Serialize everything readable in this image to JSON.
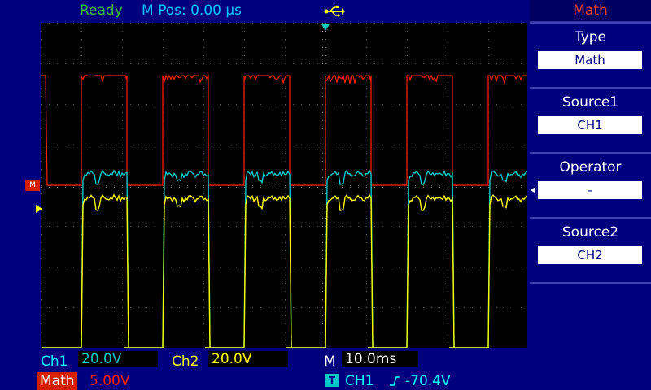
{
  "status": {
    "run_state": "Ready",
    "m_pos": "M Pos: 0.00 µs",
    "usb_icon": "usb-icon"
  },
  "channels": {
    "ch1": {
      "label": "Ch1",
      "scale": "20.0V",
      "color": "#00c8c8"
    },
    "ch2": {
      "label": "Ch2",
      "scale": "20.0V",
      "color": "#ffff00"
    },
    "math": {
      "label": "Math",
      "scale": "5.00V",
      "color": "#ff2000",
      "marker": "M"
    }
  },
  "timebase": {
    "label": "M",
    "value": "10.0ms"
  },
  "trigger": {
    "badge": "T",
    "source": "CH1",
    "edge_icon": "rising-edge-icon",
    "level": "-70.4V"
  },
  "menu": {
    "title": "Math",
    "items": [
      {
        "label": "Type",
        "value": "Math"
      },
      {
        "label": "Source1",
        "value": "CH1"
      },
      {
        "label": "Operator",
        "value": "–"
      },
      {
        "label": "Source2",
        "value": "CH2"
      }
    ],
    "selected_index": 2
  }
}
